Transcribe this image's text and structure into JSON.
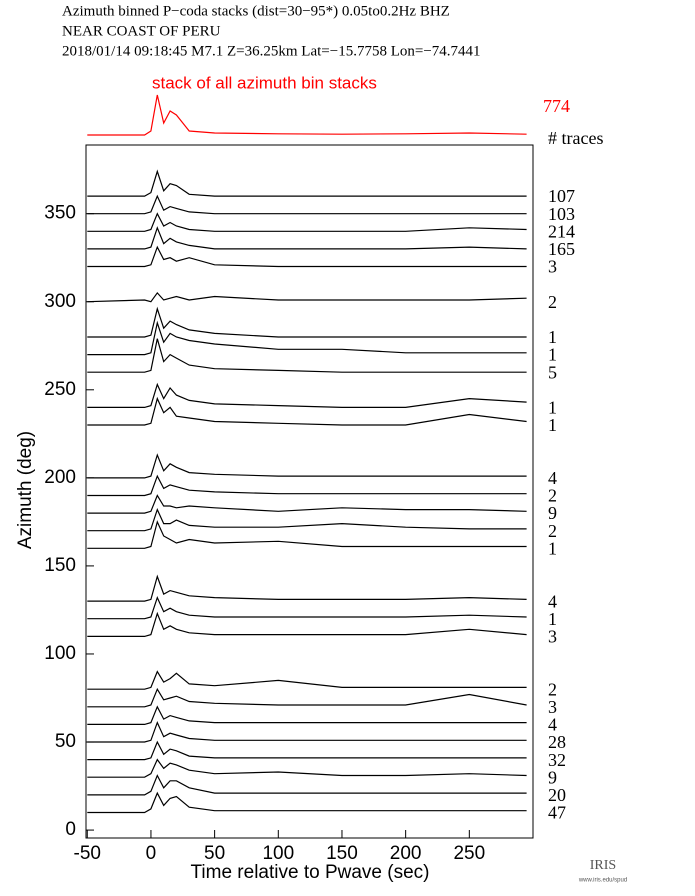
{
  "chart_data": {
    "type": "line",
    "title_lines": [
      "Azimuth binned P−coda stacks (dist=30−95*)  0.05to0.2Hz  BHZ",
      "NEAR COAST OF PERU",
      "2018/01/14  09:18:45  M7.1  Z=36.25km Lat=−15.7758 Lon=−74.7441"
    ],
    "x_label": "Time relative to Pwave (sec)",
    "y_label": "Azimuth (deg)",
    "count_header": "# traces",
    "logo": "IRIS",
    "logo_url": "www.iris.edu/spud",
    "xlim": [
      -51,
      300
    ],
    "ylim": [
      -4.5,
      389
    ],
    "xticks": [
      -50,
      0,
      50,
      100,
      150,
      200,
      250
    ],
    "yticks": [
      0,
      50,
      100,
      150,
      200,
      250,
      300,
      350
    ],
    "color": "#000000",
    "x": [
      -50,
      -5,
      0,
      5,
      10,
      15,
      20,
      30,
      50,
      100,
      150,
      200,
      250,
      295
    ],
    "stack": {
      "name": "stack of all azimuth bin stacks",
      "count": 774,
      "color": "#ff0000",
      "ylim": [
        0,
        10
      ],
      "values": [
        0,
        0,
        1,
        10,
        3,
        6,
        5,
        1,
        0.5,
        0.3,
        0.2,
        0.3,
        0.5,
        0.2
      ]
    },
    "series": [
      {
        "count": 107,
        "values": [
          360,
          360,
          362,
          374,
          363,
          367,
          366,
          361,
          360,
          360,
          360,
          360,
          360,
          360
        ]
      },
      {
        "count": 103,
        "values": [
          350,
          350,
          351,
          360,
          352,
          354,
          353,
          351,
          350,
          350,
          350,
          350,
          350,
          350
        ]
      },
      {
        "count": 214,
        "values": [
          340,
          340,
          341,
          350,
          343,
          345,
          343,
          341,
          340,
          340,
          340,
          340,
          342,
          341
        ]
      },
      {
        "count": 165,
        "values": [
          330,
          330,
          331,
          342,
          333,
          336,
          334,
          332,
          330,
          330,
          330,
          330,
          331,
          330
        ]
      },
      {
        "count": 3,
        "values": [
          320,
          320,
          321,
          331,
          324,
          325,
          323,
          325,
          321,
          320,
          320,
          320,
          320,
          320
        ]
      },
      {
        "count": 2,
        "values": [
          300,
          301,
          300,
          305,
          301,
          302,
          303,
          301,
          303,
          301,
          301,
          301,
          301,
          302
        ]
      },
      {
        "count": 1,
        "values": [
          280,
          280,
          281,
          296,
          285,
          289,
          287,
          284,
          282,
          280,
          280,
          280,
          280,
          280
        ]
      },
      {
        "count": 1,
        "values": [
          270,
          270,
          271,
          288,
          277,
          282,
          280,
          278,
          276,
          273,
          273,
          271,
          271,
          271
        ]
      },
      {
        "count": 5,
        "values": [
          260,
          260,
          261,
          279,
          266,
          270,
          268,
          264,
          262,
          261,
          260,
          260,
          260,
          260
        ]
      },
      {
        "count": 1,
        "values": [
          240,
          240,
          241,
          253,
          245,
          251,
          247,
          244,
          242,
          241,
          240,
          240,
          245,
          243
        ]
      },
      {
        "count": 1,
        "values": [
          230,
          230,
          231,
          245,
          237,
          240,
          235,
          234,
          232,
          231,
          230,
          230,
          236,
          232
        ]
      },
      {
        "count": 4,
        "values": [
          200,
          200,
          201,
          213,
          204,
          208,
          206,
          203,
          202,
          201,
          201,
          201,
          201,
          201
        ]
      },
      {
        "count": 2,
        "values": [
          190,
          190,
          191,
          201,
          194,
          196,
          195,
          193,
          192,
          191,
          191,
          191,
          191,
          191
        ]
      },
      {
        "count": 9,
        "values": [
          180,
          180,
          181,
          190,
          184,
          184,
          183,
          184,
          183,
          181,
          183,
          182,
          182,
          181
        ]
      },
      {
        "count": 2,
        "values": [
          170,
          170,
          171,
          182,
          174,
          174,
          176,
          173,
          172,
          172,
          174,
          172,
          171,
          171
        ]
      },
      {
        "count": 1,
        "values": [
          160,
          160,
          161,
          175,
          167,
          165,
          163,
          165,
          163,
          164,
          161,
          161,
          161,
          161
        ]
      },
      {
        "count": 4,
        "values": [
          130,
          130,
          131,
          144,
          134,
          136,
          135,
          133,
          132,
          131,
          131,
          131,
          132,
          131
        ]
      },
      {
        "count": 1,
        "values": [
          120,
          120,
          121,
          132,
          124,
          126,
          124,
          122,
          121,
          121,
          121,
          121,
          122,
          121
        ]
      },
      {
        "count": 3,
        "values": [
          110,
          110,
          111,
          123,
          114,
          116,
          114,
          112,
          111,
          111,
          111,
          111,
          114,
          111
        ]
      },
      {
        "count": 2,
        "values": [
          80,
          80,
          81,
          90,
          84,
          86,
          89,
          83,
          82,
          85,
          81,
          81,
          81,
          81
        ]
      },
      {
        "count": 3,
        "values": [
          70,
          70,
          71,
          80,
          74,
          75,
          76,
          73,
          72,
          71,
          71,
          71,
          77,
          71
        ]
      },
      {
        "count": 4,
        "values": [
          60,
          60,
          61,
          70,
          63,
          65,
          64,
          62,
          61,
          61,
          61,
          61,
          61,
          61
        ]
      },
      {
        "count": 28,
        "values": [
          50,
          50,
          51,
          61,
          53,
          55,
          54,
          52,
          51,
          51,
          51,
          51,
          51,
          51
        ]
      },
      {
        "count": 32,
        "values": [
          40,
          40,
          41,
          50,
          43,
          46,
          45,
          42,
          41,
          41,
          41,
          41,
          41,
          41
        ]
      },
      {
        "count": 9,
        "values": [
          30,
          30,
          32,
          40,
          35,
          38,
          37,
          34,
          32,
          33,
          31,
          31,
          32,
          31
        ]
      },
      {
        "count": 20,
        "values": [
          20,
          20,
          22,
          31,
          24,
          28,
          28,
          24,
          21,
          21,
          21,
          21,
          21,
          21
        ]
      },
      {
        "count": 47,
        "values": [
          10,
          10,
          12,
          21,
          14,
          18,
          19,
          13,
          11,
          11,
          11,
          11,
          11,
          11
        ]
      }
    ]
  }
}
